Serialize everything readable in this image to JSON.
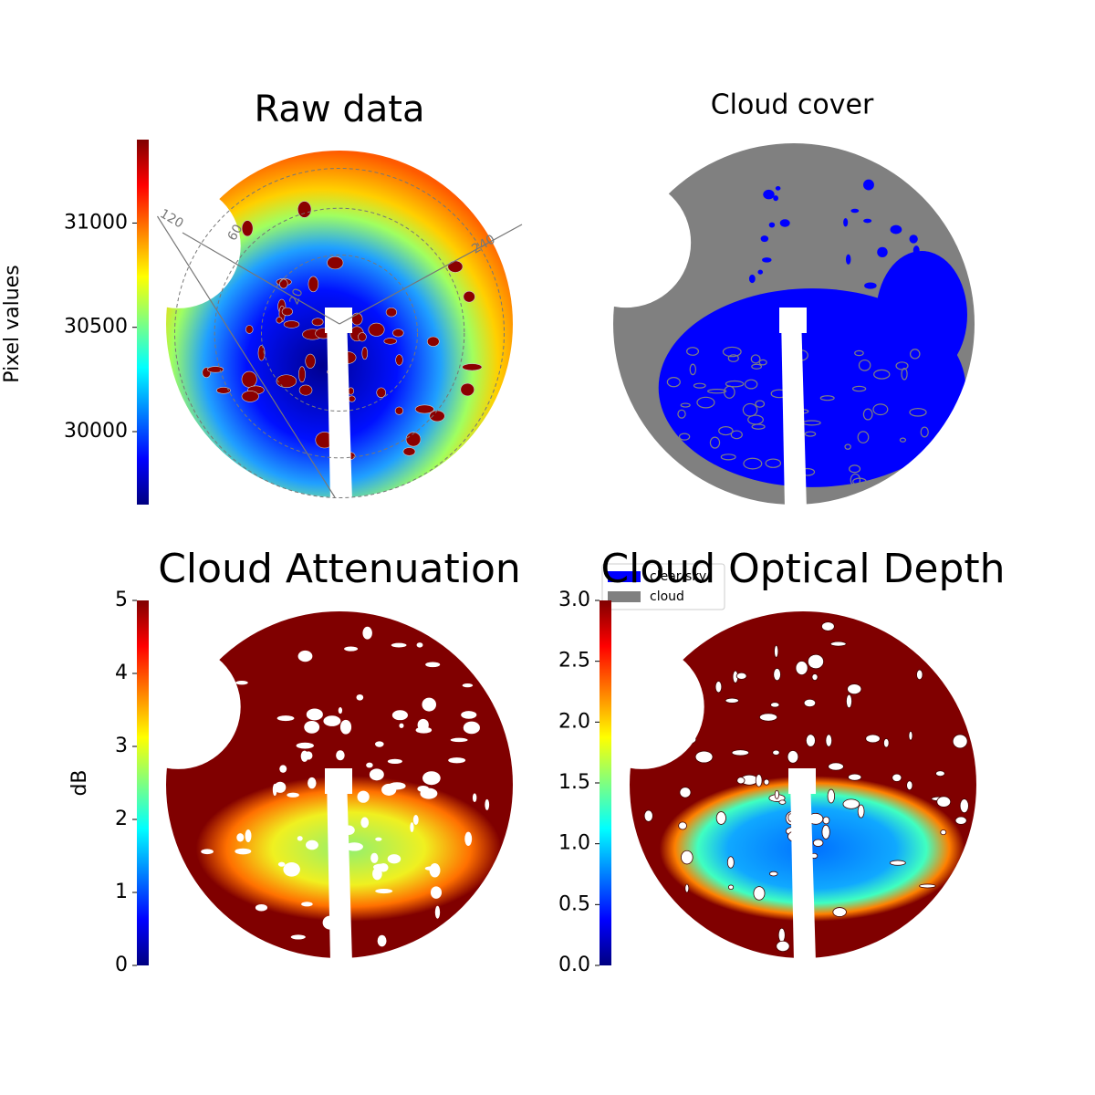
{
  "chart_data": [
    {
      "type": "image",
      "title": "Raw data",
      "colormap": "jet",
      "ylabel": "Pixel values",
      "ylim": [
        29650,
        31400
      ],
      "yticks": [
        30000,
        30500,
        31000
      ],
      "annotations": [
        "120",
        "60",
        "20",
        "240"
      ]
    },
    {
      "type": "image",
      "title": "Cloud cover",
      "series": [
        {
          "name": "clear sky",
          "color": "#0000ff"
        },
        {
          "name": "cloud",
          "color": "#808080"
        }
      ]
    },
    {
      "type": "image",
      "title": "Cloud Attenuation",
      "colormap": "jet",
      "ylabel": "dB",
      "ylim": [
        0,
        5
      ],
      "yticks": [
        0,
        1,
        2,
        3,
        4,
        5
      ]
    },
    {
      "type": "image",
      "title": "Cloud Optical Depth",
      "colormap": "jet",
      "ylim": [
        0,
        3
      ],
      "yticks": [
        {
          "value": 0,
          "label": "0.0"
        },
        {
          "value": 0.5,
          "label": "0.5"
        },
        {
          "value": 1,
          "label": "1.0"
        },
        {
          "value": 1.5,
          "label": "1.5"
        },
        {
          "value": 2,
          "label": "2.0"
        },
        {
          "value": 2.5,
          "label": "2.5"
        },
        {
          "value": 3,
          "label": "3.0"
        }
      ]
    }
  ]
}
